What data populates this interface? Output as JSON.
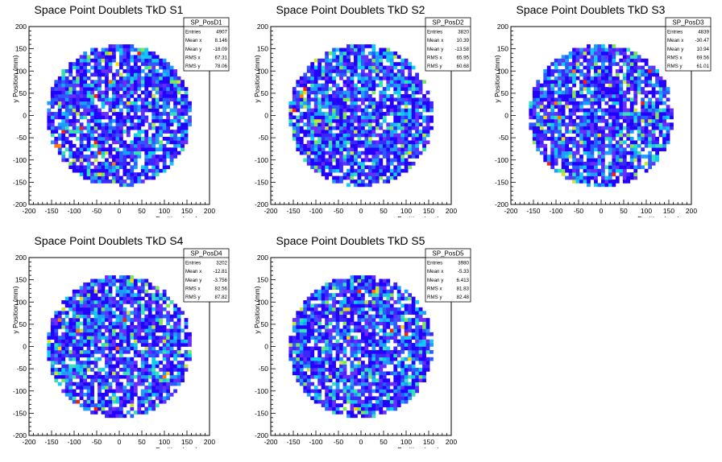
{
  "chart_data": [
    {
      "type": "heatmap",
      "title": "Space Point Doublets TkD S1",
      "xlabel": "x Position (mm)",
      "ylabel": "y Position (mm)",
      "xlim": [
        -200,
        200
      ],
      "ylim": [
        -200,
        200
      ],
      "xticks": [
        "-200",
        "-150",
        "-100",
        "-50",
        "0",
        "50",
        "100",
        "150",
        "200"
      ],
      "yticks": [
        "-200",
        "-150",
        "-100",
        "-50",
        "0",
        "50",
        "100",
        "150",
        "200"
      ],
      "stats": {
        "name": "SP_PosD1",
        "rows": [
          [
            "Entries",
            "4907"
          ],
          [
            "Mean x",
            "8.146"
          ],
          [
            "Mean y",
            "-18.09"
          ],
          [
            "RMS x",
            "67.31"
          ],
          [
            "RMS y",
            "78.06"
          ]
        ]
      },
      "radius_mm": 160
    },
    {
      "type": "heatmap",
      "title": "Space Point Doublets TkD S2",
      "xlabel": "x Position (mm)",
      "ylabel": "y Position (mm)",
      "xlim": [
        -200,
        200
      ],
      "ylim": [
        -200,
        200
      ],
      "xticks": [
        "-200",
        "-150",
        "-100",
        "-50",
        "0",
        "50",
        "100",
        "150",
        "200"
      ],
      "yticks": [
        "-200",
        "-150",
        "-100",
        "-50",
        "0",
        "50",
        "100",
        "150",
        "200"
      ],
      "stats": {
        "name": "SP_PosD2",
        "rows": [
          [
            "Entries",
            "3820"
          ],
          [
            "Mean x",
            "10.39"
          ],
          [
            "Mean y",
            "-13.58"
          ],
          [
            "RMS x",
            "65.95"
          ],
          [
            "RMS y",
            "60.68"
          ]
        ]
      },
      "radius_mm": 160
    },
    {
      "type": "heatmap",
      "title": "Space Point Doublets TkD S3",
      "xlabel": "x Position (mm)",
      "ylabel": "y Position (mm)",
      "xlim": [
        -200,
        200
      ],
      "ylim": [
        -200,
        200
      ],
      "xticks": [
        "-200",
        "-150",
        "-100",
        "-50",
        "0",
        "50",
        "100",
        "150",
        "200"
      ],
      "yticks": [
        "-200",
        "-150",
        "-100",
        "-50",
        "0",
        "50",
        "100",
        "150",
        "200"
      ],
      "stats": {
        "name": "SP_PosD3",
        "rows": [
          [
            "Entries",
            "4839"
          ],
          [
            "Mean x",
            "-30.47"
          ],
          [
            "Mean y",
            "10.94"
          ],
          [
            "RMS x",
            "69.56"
          ],
          [
            "RMS y",
            "61.01"
          ]
        ]
      },
      "radius_mm": 160
    },
    {
      "type": "heatmap",
      "title": "Space Point Doublets TkD S4",
      "xlabel": "x Position (mm)",
      "ylabel": "y Position (mm)",
      "xlim": [
        -200,
        200
      ],
      "ylim": [
        -200,
        200
      ],
      "xticks": [
        "-200",
        "-150",
        "-100",
        "-50",
        "0",
        "50",
        "100",
        "150",
        "200"
      ],
      "yticks": [
        "-200",
        "-150",
        "-100",
        "-50",
        "0",
        "50",
        "100",
        "150",
        "200"
      ],
      "stats": {
        "name": "SP_PosD4",
        "rows": [
          [
            "Entries",
            "3202"
          ],
          [
            "Mean x",
            "-12.81"
          ],
          [
            "Mean y",
            "-3.756"
          ],
          [
            "RMS x",
            "82.56"
          ],
          [
            "RMS y",
            "87.82"
          ]
        ]
      },
      "radius_mm": 160
    },
    {
      "type": "heatmap",
      "title": "Space Point Doublets TkD S5",
      "xlabel": "x Position (mm)",
      "ylabel": "y Position (mm)",
      "xlim": [
        -200,
        200
      ],
      "ylim": [
        -200,
        200
      ],
      "xticks": [
        "-200",
        "-150",
        "-100",
        "-50",
        "0",
        "50",
        "100",
        "150",
        "200"
      ],
      "yticks": [
        "-200",
        "-150",
        "-100",
        "-50",
        "0",
        "50",
        "100",
        "150",
        "200"
      ],
      "stats": {
        "name": "SP_PosD5",
        "rows": [
          [
            "Entries",
            "3980"
          ],
          [
            "Mean x",
            "-5.33"
          ],
          [
            "Mean y",
            "6.413"
          ],
          [
            "RMS x",
            "81.83"
          ],
          [
            "RMS y",
            "82.48"
          ]
        ]
      },
      "radius_mm": 160
    }
  ],
  "palette": [
    "#2400ff",
    "#3c28ff",
    "#6a2cff",
    "#2a5cff",
    "#1e9cff",
    "#12c9f2",
    "#38e0b4",
    "#7be65a",
    "#c8e63a",
    "#ffd800",
    "#ff7a00",
    "#ff1e00"
  ]
}
